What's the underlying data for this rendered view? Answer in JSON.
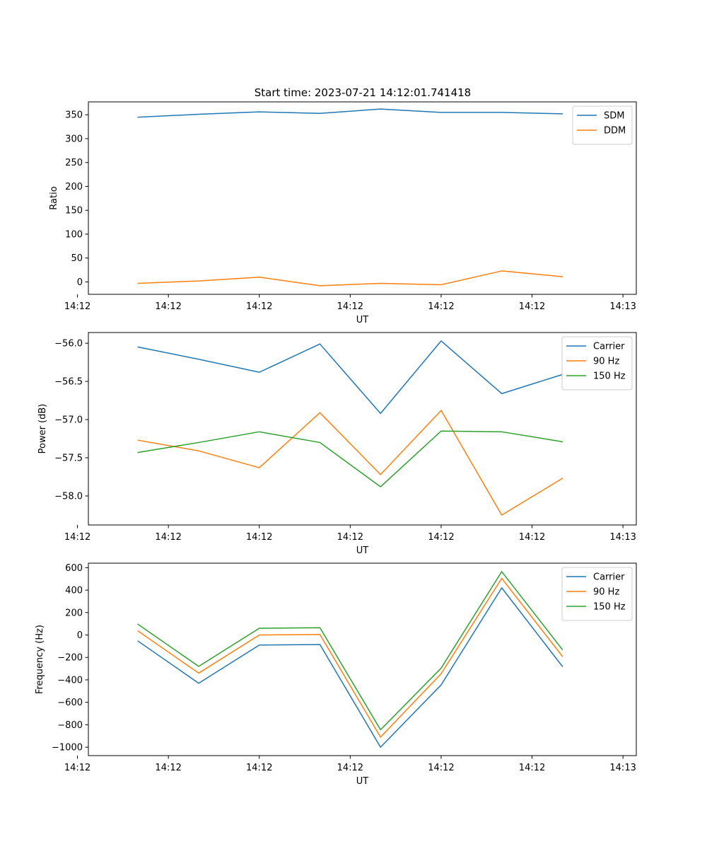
{
  "figure_title": "Start time: 2023-07-21 14:12:01.741418",
  "colors": {
    "blue": "#1f77b4",
    "orange": "#ff7f0e",
    "green": "#2ca02c"
  },
  "chart_data": [
    {
      "type": "line",
      "title": "Start time: 2023-07-21 14:12:01.741418",
      "xlabel": "UT",
      "ylabel": "Ratio",
      "x": [
        1,
        2,
        3,
        4,
        5,
        6,
        7,
        8
      ],
      "xlim": [
        0.18,
        9.22
      ],
      "x_ticks": [
        0,
        1.5,
        3,
        4.5,
        6,
        7.5,
        9
      ],
      "x_tick_labels": [
        "14:12",
        "14:12",
        "14:12",
        "14:12",
        "14:12",
        "14:12",
        "14:13"
      ],
      "ylim": [
        -26,
        377
      ],
      "y_ticks": [
        0,
        50,
        100,
        150,
        200,
        250,
        300,
        350
      ],
      "y_tick_labels": [
        "0",
        "50",
        "100",
        "150",
        "200",
        "250",
        "300",
        "350"
      ],
      "legend_position": "top-right",
      "series": [
        {
          "name": "SDM",
          "color": "#1f77b4",
          "values": [
            345,
            351,
            356,
            353,
            362,
            355,
            355,
            352
          ]
        },
        {
          "name": "DDM",
          "color": "#ff7f0e",
          "values": [
            -3,
            2,
            10,
            -8,
            -3,
            -6,
            23,
            11
          ]
        }
      ]
    },
    {
      "type": "line",
      "title": "",
      "xlabel": "UT",
      "ylabel": "Power (dB)",
      "x": [
        1,
        2,
        3,
        4,
        5,
        6,
        7,
        8
      ],
      "xlim": [
        0.18,
        9.22
      ],
      "x_ticks": [
        0,
        1.5,
        3,
        4.5,
        6,
        7.5,
        9
      ],
      "x_tick_labels": [
        "14:12",
        "14:12",
        "14:12",
        "14:12",
        "14:12",
        "14:12",
        "14:13"
      ],
      "ylim": [
        -58.38,
        -55.86
      ],
      "y_ticks": [
        -56.0,
        -56.5,
        -57.0,
        -57.5,
        -58.0
      ],
      "y_tick_labels": [
        "−56.0",
        "−56.5",
        "−57.0",
        "−57.5",
        "−58.0"
      ],
      "legend_position": "top-right",
      "series": [
        {
          "name": "Carrier",
          "color": "#1f77b4",
          "values": [
            -56.05,
            -56.21,
            -56.38,
            -56.01,
            -56.92,
            -55.97,
            -56.66,
            -56.41
          ]
        },
        {
          "name": "90 Hz",
          "color": "#ff7f0e",
          "values": [
            -57.27,
            -57.41,
            -57.63,
            -56.91,
            -57.72,
            -56.88,
            -58.25,
            -57.77
          ]
        },
        {
          "name": "150 Hz",
          "color": "#2ca02c",
          "values": [
            -57.43,
            -57.3,
            -57.16,
            -57.3,
            -57.88,
            -57.15,
            -57.16,
            -57.29
          ]
        }
      ]
    },
    {
      "type": "line",
      "title": "",
      "xlabel": "UT",
      "ylabel": "Frequency (Hz)",
      "x": [
        1,
        2,
        3,
        4,
        5,
        6,
        7,
        8
      ],
      "xlim": [
        0.18,
        9.22
      ],
      "x_ticks": [
        0,
        1.5,
        3,
        4.5,
        6,
        7.5,
        9
      ],
      "x_tick_labels": [
        "14:12",
        "14:12",
        "14:12",
        "14:12",
        "14:12",
        "14:12",
        "14:13"
      ],
      "ylim": [
        -1075,
        640
      ],
      "y_ticks": [
        600,
        400,
        200,
        0,
        -200,
        -400,
        -600,
        -800,
        -1000
      ],
      "y_tick_labels": [
        "600",
        "400",
        "200",
        "0",
        "−200",
        "−400",
        "−600",
        "−800",
        "−1000"
      ],
      "legend_position": "top-right",
      "series": [
        {
          "name": "Carrier",
          "color": "#1f77b4",
          "values": [
            -55,
            -430,
            -90,
            -85,
            -1000,
            -445,
            420,
            -280
          ]
        },
        {
          "name": "90 Hz",
          "color": "#ff7f0e",
          "values": [
            35,
            -340,
            0,
            5,
            -910,
            -345,
            505,
            -190
          ]
        },
        {
          "name": "150 Hz",
          "color": "#2ca02c",
          "values": [
            95,
            -280,
            60,
            65,
            -845,
            -295,
            565,
            -130
          ]
        }
      ]
    }
  ]
}
